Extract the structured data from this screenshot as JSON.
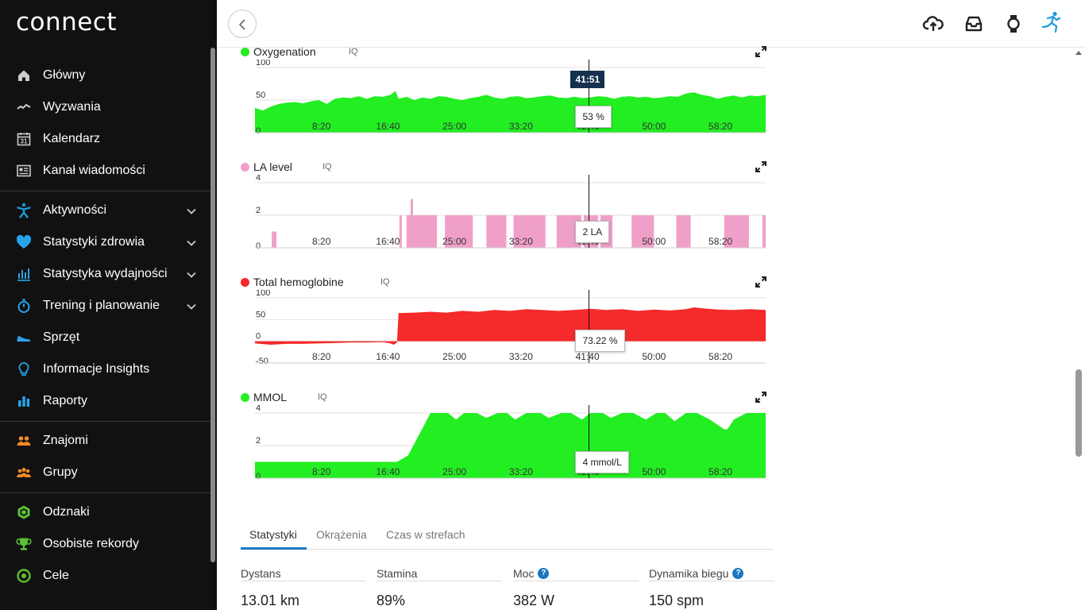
{
  "app": {
    "logo_text": "connect"
  },
  "sidebar": {
    "groups": [
      [
        {
          "id": "home",
          "label": "Główny",
          "icon": "home-icon"
        },
        {
          "id": "challenges",
          "label": "Wyzwania",
          "icon": "challenges-icon"
        },
        {
          "id": "calendar",
          "label": "Kalendarz",
          "icon": "calendar-icon",
          "icon_text": "31"
        },
        {
          "id": "newsfeed",
          "label": "Kanał wiadomości",
          "icon": "newsfeed-icon"
        }
      ],
      [
        {
          "id": "activities",
          "label": "Aktywności",
          "icon": "activity-icon",
          "expandable": true
        },
        {
          "id": "health",
          "label": "Statystyki zdrowia",
          "icon": "heart-icon",
          "expandable": true
        },
        {
          "id": "performance",
          "label": "Statystyka wydajności",
          "icon": "performance-icon",
          "expandable": true
        },
        {
          "id": "training",
          "label": "Trening i planowanie",
          "icon": "stopwatch-icon",
          "expandable": true
        },
        {
          "id": "gear",
          "label": "Sprzęt",
          "icon": "shoe-icon"
        },
        {
          "id": "insights",
          "label": "Informacje Insights",
          "icon": "lightbulb-icon"
        },
        {
          "id": "reports",
          "label": "Raporty",
          "icon": "bar-chart-icon"
        }
      ],
      [
        {
          "id": "friends",
          "label": "Znajomi",
          "icon": "friends-icon"
        },
        {
          "id": "groups",
          "label": "Grupy",
          "icon": "groups-icon"
        }
      ],
      [
        {
          "id": "badges",
          "label": "Odznaki",
          "icon": "badge-icon"
        },
        {
          "id": "records",
          "label": "Osobiste rekordy",
          "icon": "trophy-icon"
        },
        {
          "id": "goals",
          "label": "Cele",
          "icon": "target-icon"
        }
      ]
    ]
  },
  "topbar": {
    "icons": [
      "upload-cloud-icon",
      "inbox-icon",
      "watch-icon",
      "runner-avatar-icon"
    ]
  },
  "colors": {
    "green": "#22ee22",
    "pink": "#f0a0c8",
    "red": "#f52a2a",
    "blue": "#1a78c2",
    "sidebar_bg": "#111111"
  },
  "chart_data": [
    {
      "type": "area",
      "title": "Oxygenation",
      "iq": "IQ",
      "color": "#22ee22",
      "ylim": [
        0,
        100
      ],
      "yticks": [
        "100",
        "50",
        "0"
      ],
      "yticks_values": [
        100,
        50,
        0
      ],
      "xlim": [
        0,
        64
      ],
      "xticks": [
        "8:20",
        "16:40",
        "25:00",
        "33:20",
        "41:40",
        "50:00",
        "58:20"
      ],
      "xticks_values": [
        8.333,
        16.667,
        25,
        33.333,
        41.667,
        50,
        58.333
      ],
      "cursor_time": "41:51",
      "cursor_value": 41.85,
      "tooltip": "53 %",
      "x": [
        0,
        1,
        2,
        3,
        4,
        5,
        6,
        7,
        8,
        9,
        10,
        11,
        12,
        13,
        14,
        15,
        16,
        17,
        17.6,
        18,
        19,
        20,
        21,
        22,
        23,
        24,
        25,
        26,
        27,
        28,
        29,
        30,
        31,
        32,
        33,
        34,
        35,
        36,
        37,
        38,
        39,
        40,
        41,
        42,
        43,
        44,
        45,
        46,
        47,
        48,
        49,
        50,
        51,
        52,
        53,
        54,
        55,
        56,
        57,
        58,
        59,
        60,
        61,
        62,
        63,
        64
      ],
      "y": [
        38,
        34,
        40,
        44,
        46,
        47,
        45,
        48,
        50,
        44,
        52,
        54,
        53,
        56,
        52,
        56,
        55,
        58,
        64,
        52,
        55,
        50,
        54,
        52,
        56,
        55,
        52,
        50,
        53,
        55,
        58,
        54,
        52,
        55,
        56,
        53,
        54,
        56,
        57,
        54,
        53,
        55,
        53,
        54,
        56,
        55,
        52,
        55,
        56,
        54,
        55,
        53,
        54,
        56,
        55,
        60,
        62,
        58,
        56,
        52,
        55,
        57,
        54,
        57,
        56,
        58
      ]
    },
    {
      "type": "bar",
      "title": "LA level",
      "iq": "IQ",
      "color": "#f0a0c8",
      "ylim": [
        0,
        4
      ],
      "yticks": [
        "4",
        "2",
        "0"
      ],
      "yticks_values": [
        4,
        2,
        0
      ],
      "xlim": [
        0,
        64
      ],
      "xticks": [
        "8:20",
        "16:40",
        "25:00",
        "33:20",
        "41:40",
        "50:00",
        "58:20"
      ],
      "xticks_values": [
        8.333,
        16.667,
        25,
        33.333,
        41.667,
        50,
        58.333
      ],
      "cursor_value": 41.85,
      "tooltip": "2 LA",
      "segments": [
        [
          2.1,
          2.7,
          1
        ],
        [
          18.1,
          18.4,
          2
        ],
        [
          19.0,
          22.8,
          2
        ],
        [
          19.5,
          19.8,
          3
        ],
        [
          20.3,
          22.5,
          2
        ],
        [
          23.8,
          27.3,
          2
        ],
        [
          24.0,
          27.0,
          1
        ],
        [
          29.0,
          31.5,
          2
        ],
        [
          29.8,
          31.0,
          1
        ],
        [
          32.4,
          36.4,
          2
        ],
        [
          33.0,
          34.6,
          1
        ],
        [
          37.8,
          40.9,
          2
        ],
        [
          38.3,
          40.5,
          1
        ],
        [
          41.2,
          43.0,
          2
        ],
        [
          43.3,
          44.8,
          2
        ],
        [
          47.2,
          50.0,
          2
        ],
        [
          47.6,
          49.6,
          1
        ],
        [
          52.8,
          54.6,
          2
        ],
        [
          53.0,
          54.2,
          1
        ],
        [
          58.8,
          61.9,
          2
        ],
        [
          59.2,
          61.3,
          1
        ],
        [
          63.6,
          64,
          2
        ]
      ]
    },
    {
      "type": "area",
      "title": "Total hemoglobine",
      "iq": "IQ",
      "color": "#f52a2a",
      "ylim": [
        -50,
        100
      ],
      "yticks": [
        "100",
        "50",
        "0",
        "-50"
      ],
      "yticks_values": [
        100,
        50,
        0,
        -50
      ],
      "xlim": [
        0,
        64
      ],
      "xticks": [
        "8:20",
        "16:40",
        "25:00",
        "33:20",
        "41:40",
        "50:00",
        "58:20"
      ],
      "xticks_values": [
        8.333,
        16.667,
        25,
        33.333,
        41.667,
        50,
        58.333
      ],
      "cursor_value": 41.85,
      "tooltip": "73.22 %",
      "x": [
        0,
        2,
        4,
        6,
        8,
        10,
        12,
        14,
        16,
        17,
        17.4,
        17.8,
        18,
        20,
        22,
        24,
        26,
        28,
        30,
        32,
        34,
        36,
        38,
        40,
        42,
        44,
        46,
        48,
        50,
        52,
        54,
        55,
        56,
        58,
        60,
        62,
        64
      ],
      "y": [
        -5,
        -8,
        -6,
        -6,
        -5,
        -4,
        -3,
        -3,
        -2,
        -5,
        -8,
        -3,
        65,
        66,
        68,
        66,
        70,
        68,
        72,
        70,
        74,
        72,
        70,
        72,
        75,
        72,
        74,
        70,
        73,
        71,
        74,
        78,
        76,
        73,
        72,
        74,
        72
      ]
    },
    {
      "type": "area",
      "title": "MMOL",
      "iq": "IQ",
      "color": "#22ee22",
      "ylim": [
        0,
        4
      ],
      "yticks": [
        "4",
        "2",
        "0"
      ],
      "yticks_values": [
        4,
        2,
        0
      ],
      "xlim": [
        0,
        64
      ],
      "xticks": [
        "8:20",
        "16:40",
        "25:00",
        "33:20",
        "41:40",
        "50:00",
        "58:20"
      ],
      "xticks_values": [
        8.333,
        16.667,
        25,
        33.333,
        41.667,
        50,
        58.333
      ],
      "cursor_value": 41.85,
      "tooltip": "4 mmol/L",
      "x": [
        0,
        17.8,
        19.2,
        22.0,
        24.2,
        25.2,
        26.2,
        27.8,
        29.0,
        30.4,
        31.6,
        32.6,
        34.0,
        35.8,
        36.8,
        38.4,
        39.6,
        41.0,
        42.0,
        43.6,
        44.6,
        46.0,
        47.4,
        49.0,
        50.3,
        51.4,
        52.6,
        54.0,
        55.4,
        57.0,
        58.8,
        59.2,
        60.0,
        61.6,
        64.0
      ],
      "y": [
        1.0,
        1.0,
        1.4,
        4.0,
        4.0,
        3.6,
        4.0,
        4.0,
        3.7,
        4.0,
        4.0,
        3.6,
        4.0,
        4.0,
        3.7,
        4.0,
        4.0,
        3.6,
        4.0,
        4.0,
        3.7,
        4.0,
        4.0,
        3.6,
        4.0,
        4.0,
        3.5,
        4.0,
        4.0,
        3.6,
        3.0,
        3.0,
        3.6,
        4.0,
        4.0
      ]
    }
  ],
  "tabs": [
    {
      "label": "Statystyki",
      "active": true
    },
    {
      "label": "Okrążenia",
      "active": false
    },
    {
      "label": "Czas w strefach",
      "active": false
    }
  ],
  "stats": [
    {
      "label": "Dystans",
      "value": "13.01 km",
      "help": false
    },
    {
      "label": "Stamina",
      "value": "89%",
      "help": false
    },
    {
      "label": "Moc",
      "value": "382 W",
      "help": true
    },
    {
      "label": "Dynamika biegu",
      "value": "150 spm",
      "help": true
    }
  ],
  "help_glyph": "?"
}
